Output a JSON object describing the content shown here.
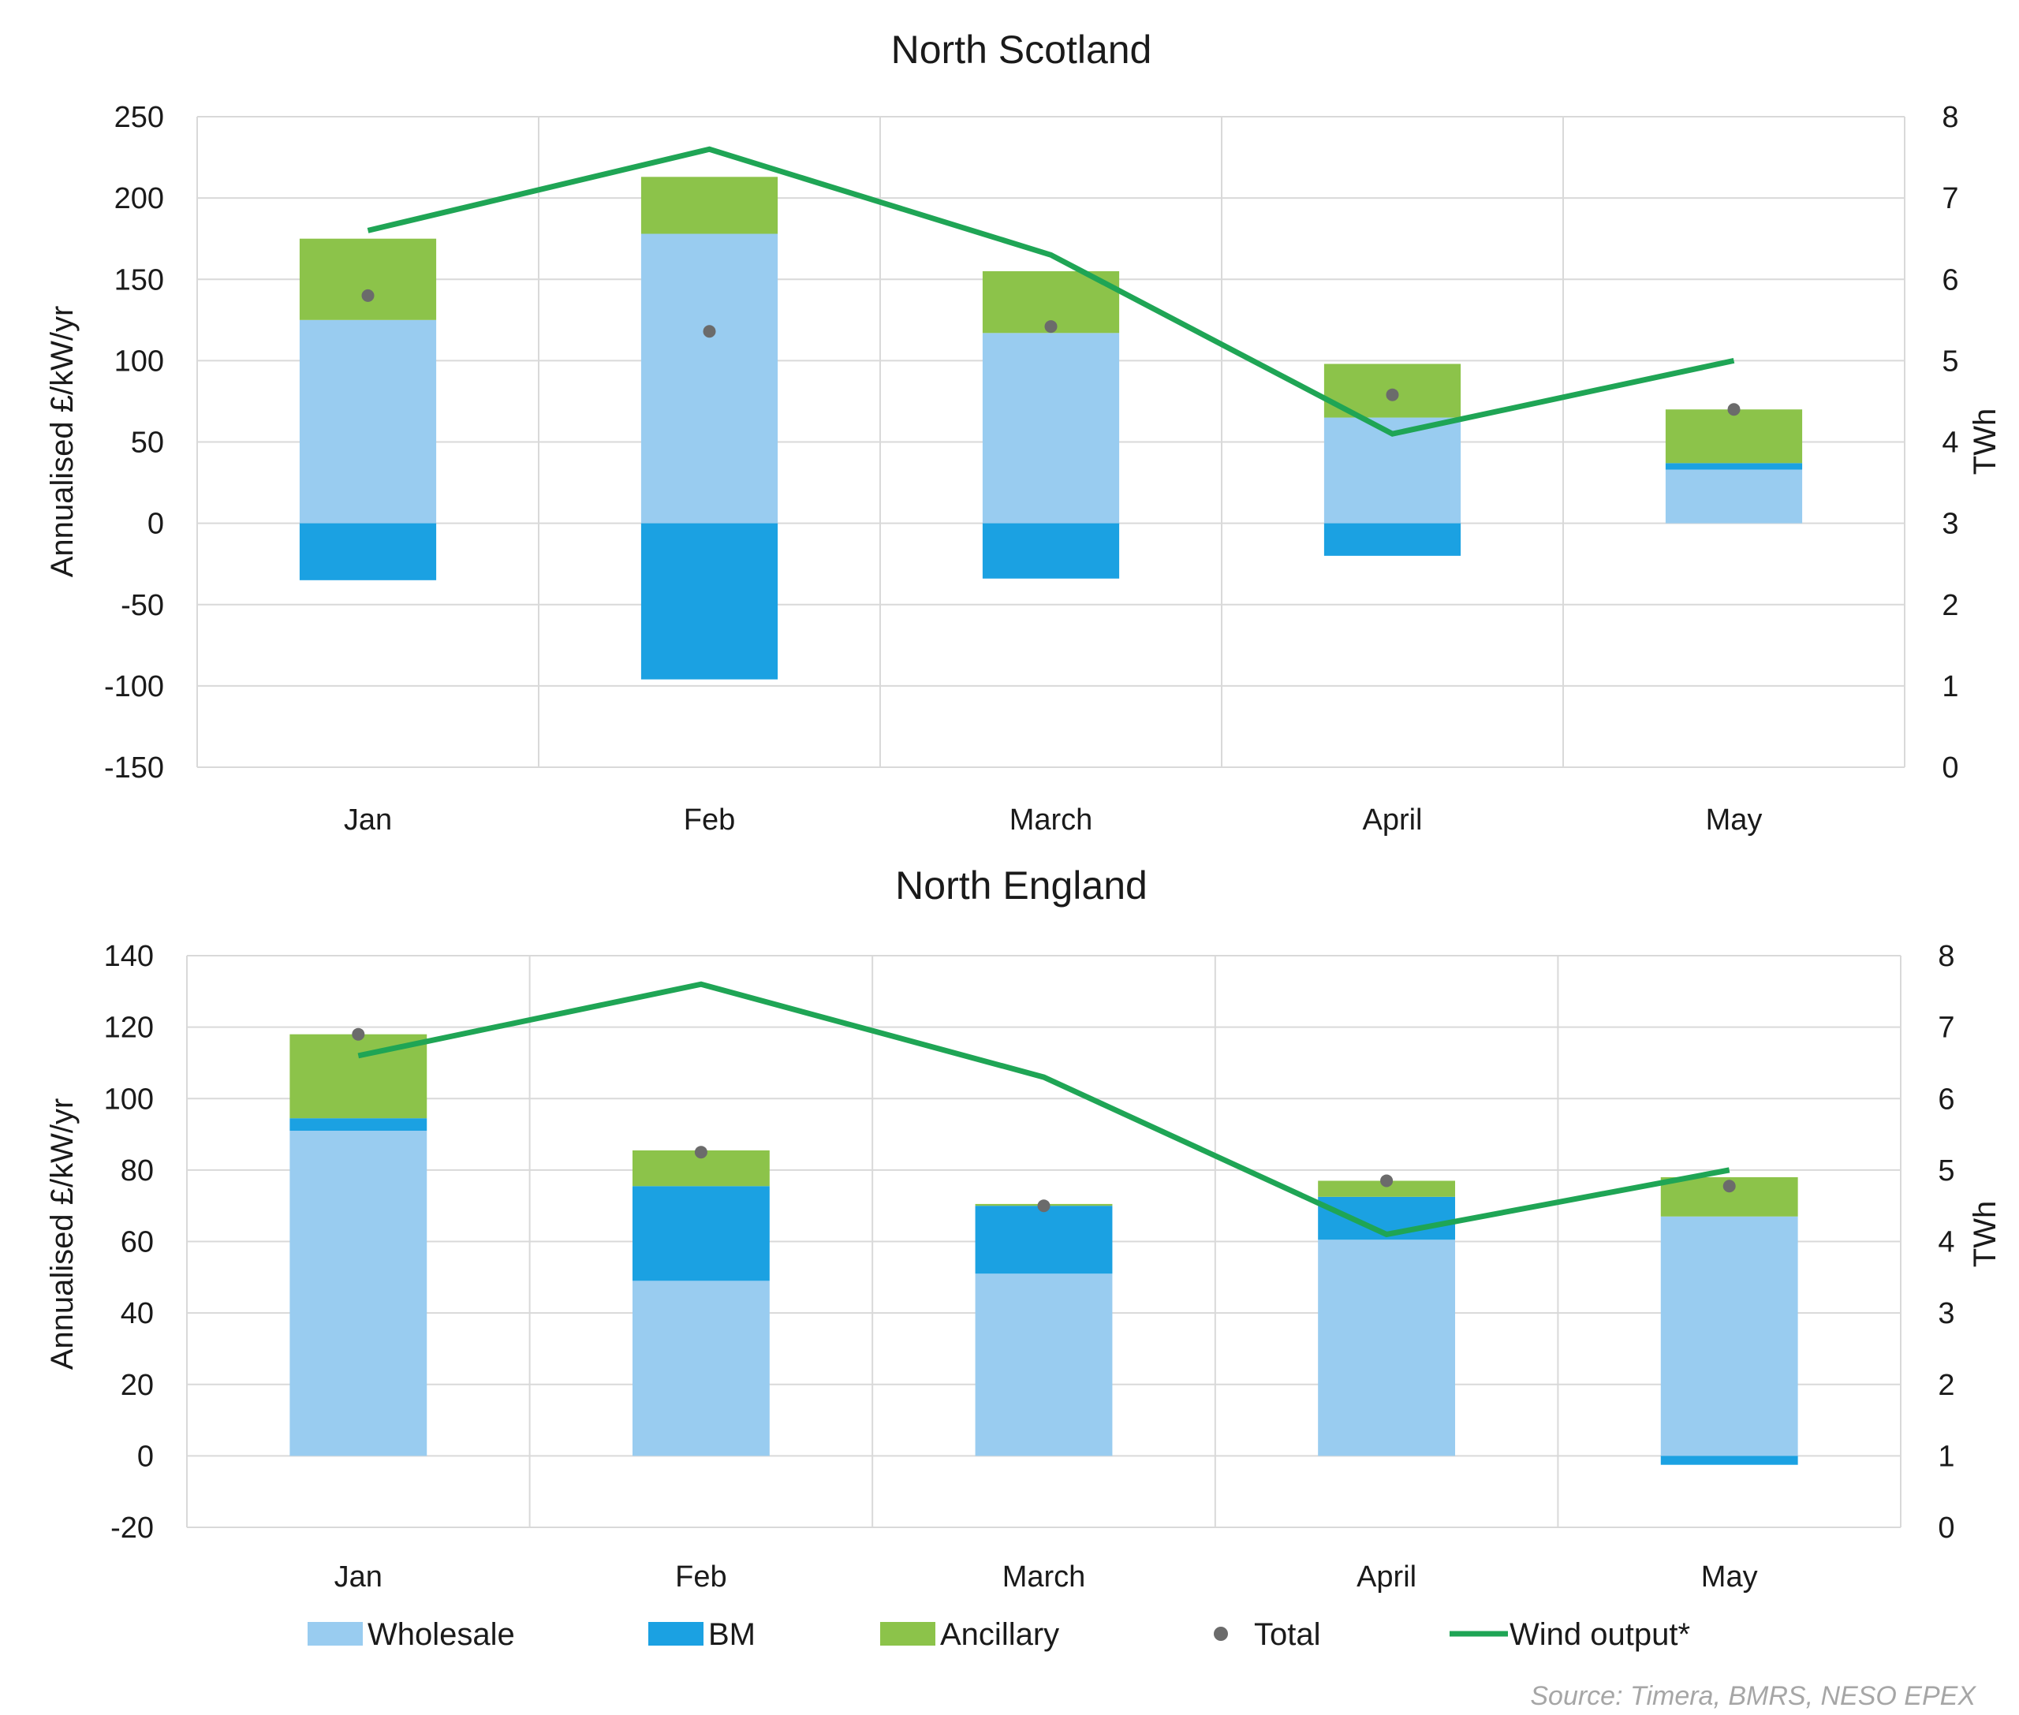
{
  "colors": {
    "wholesale": "#99CCF0",
    "bm": "#1BA1E2",
    "ancillary": "#8CC34A",
    "total": "#6b6b6b",
    "wind": "#1FA555",
    "grid": "#d9d9d9"
  },
  "legend": [
    "Wholesale",
    "BM",
    "Ancillary",
    "Total",
    "Wind output*"
  ],
  "source": "Source: Timera, BMRS, NESO EPEX",
  "chart_data": [
    {
      "type": "bar",
      "stacked": true,
      "title": "North Scotland",
      "categories": [
        "Jan",
        "Feb",
        "March",
        "April",
        "May"
      ],
      "ylabel": "Annualised £/kW/yr",
      "y2label": "TWh",
      "ylim": [
        -150,
        250
      ],
      "yticks": [
        "250",
        "200",
        "150",
        "100",
        "50",
        "0",
        "-50",
        "-100",
        "-150"
      ],
      "y2lim": [
        0,
        8
      ],
      "y2ticks": [
        "8",
        "7",
        "6",
        "5",
        "4",
        "3",
        "2",
        "1",
        "0"
      ],
      "grid": true,
      "series": [
        {
          "name": "Wholesale",
          "values": [
            125,
            178,
            117,
            65,
            33
          ]
        },
        {
          "name": "BM",
          "values": [
            -35,
            -96,
            -34,
            -20,
            4
          ]
        },
        {
          "name": "Ancillary",
          "values": [
            50,
            35,
            38,
            33,
            33
          ]
        },
        {
          "name": "Total",
          "values": [
            140,
            118,
            121,
            79,
            70
          ]
        },
        {
          "name": "Wind output*",
          "axis": "secondary",
          "values": [
            6.6,
            7.6,
            6.3,
            4.1,
            5.0
          ]
        }
      ]
    },
    {
      "type": "bar",
      "stacked": true,
      "title": "North England",
      "categories": [
        "Jan",
        "Feb",
        "March",
        "April",
        "May"
      ],
      "ylabel": "Annualised £/kW/yr",
      "y2label": "TWh",
      "ylim": [
        -20,
        140
      ],
      "yticks": [
        "140",
        "120",
        "100",
        "80",
        "60",
        "40",
        "20",
        "0",
        "-20"
      ],
      "y2lim": [
        0,
        8
      ],
      "y2ticks": [
        "8",
        "7",
        "6",
        "5",
        "4",
        "3",
        "2",
        "1",
        "0"
      ],
      "grid": true,
      "series": [
        {
          "name": "Wholesale",
          "values": [
            91,
            49,
            51,
            60.5,
            67
          ]
        },
        {
          "name": "BM",
          "values": [
            3.5,
            26.5,
            19,
            12,
            -2.5
          ]
        },
        {
          "name": "Ancillary",
          "values": [
            23.5,
            10,
            0.5,
            4.5,
            11
          ]
        },
        {
          "name": "Total",
          "values": [
            118,
            85,
            70,
            77,
            75.5
          ]
        },
        {
          "name": "Wind output*",
          "axis": "secondary",
          "values": [
            6.6,
            7.6,
            6.3,
            4.1,
            5.0
          ]
        }
      ]
    }
  ]
}
